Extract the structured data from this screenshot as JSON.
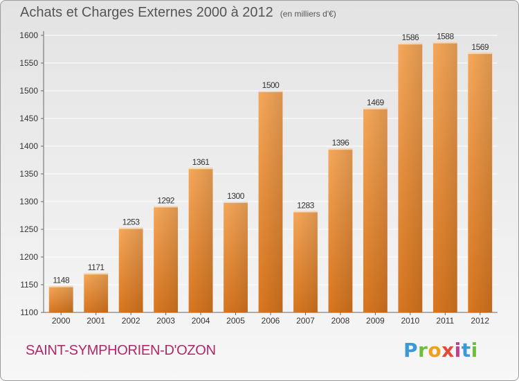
{
  "header": {
    "title": "Achats et Charges Externes 2000 à 2012",
    "unit": "(en milliers d'€)"
  },
  "footer": {
    "commune": "SAINT-SYMPHORIEN-D'OZON",
    "logo": "Proxiti"
  },
  "colors": {
    "bar_light": "#f6a85a",
    "bar_dark": "#d8761f",
    "commune_text": "#b0286a",
    "axis_text": "#333333"
  },
  "chart_data": {
    "type": "bar",
    "title": "Achats et Charges Externes 2000 à 2012",
    "subtitle": "(en milliers d'€)",
    "categories": [
      "2000",
      "2001",
      "2002",
      "2003",
      "2004",
      "2005",
      "2006",
      "2007",
      "2008",
      "2009",
      "2010",
      "2011",
      "2012"
    ],
    "values": [
      1148,
      1171,
      1253,
      1292,
      1361,
      1300,
      1500,
      1283,
      1396,
      1469,
      1586,
      1588,
      1569
    ],
    "ylim": [
      1100,
      1600
    ],
    "yticks": [
      1100,
      1150,
      1200,
      1250,
      1300,
      1350,
      1400,
      1450,
      1500,
      1550,
      1600
    ],
    "grid": true,
    "legend": "none"
  }
}
